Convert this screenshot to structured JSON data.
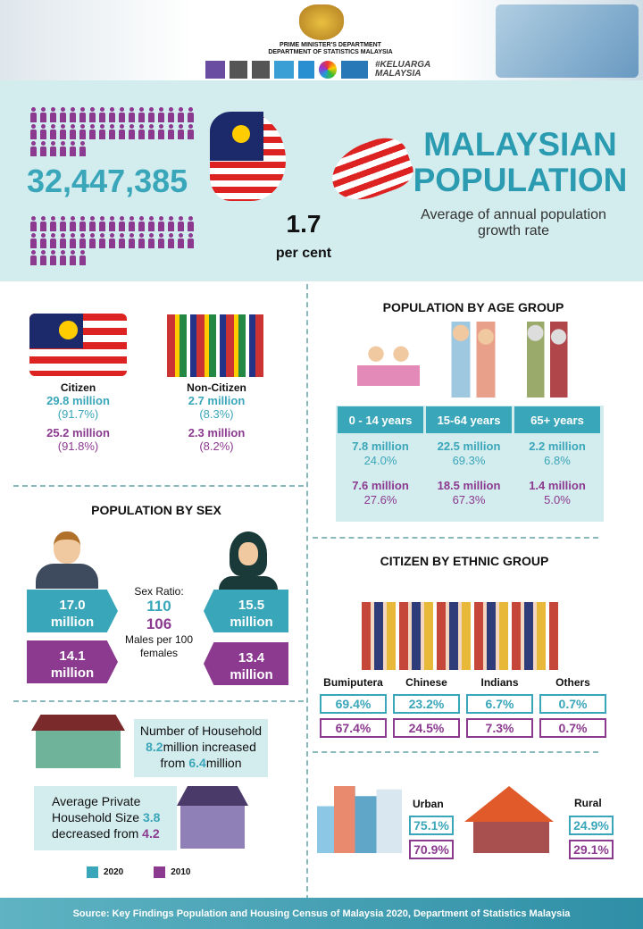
{
  "header": {
    "line1": "PRIME MINISTER'S DEPARTMENT",
    "line2": "DEPARTMENT OF STATISTICS MALAYSIA",
    "hashtag": "#KELUARGA MALAYSIA"
  },
  "hero": {
    "population": "32,447,385",
    "growth_value": "1.7",
    "growth_unit": "per cent",
    "title_line1": "MALAYSIAN",
    "title_line2": "POPULATION",
    "subtitle": "Average of annual population growth rate"
  },
  "citizenship": {
    "citizen": {
      "label": "Citizen",
      "v2020": "29.8 million",
      "p2020": "(91.7%)",
      "v2010": "25.2 million",
      "p2010": "(91.8%)"
    },
    "non_citizen": {
      "label": "Non-Citizen",
      "v2020": "2.7 million",
      "p2020": "(8.3%)",
      "v2010": "2.3 million",
      "p2010": "(8.2%)"
    }
  },
  "age": {
    "title": "POPULATION BY AGE GROUP",
    "groups": [
      {
        "label": "0 - 14 years",
        "v2020": "7.8 million",
        "p2020": "24.0%",
        "v2010": "7.6 million",
        "p2010": "27.6%"
      },
      {
        "label": "15-64 years",
        "v2020": "22.5 million",
        "p2020": "69.3%",
        "v2010": "18.5 million",
        "p2010": "67.3%"
      },
      {
        "label": "65+ years",
        "v2020": "2.2 million",
        "p2020": "6.8%",
        "v2010": "1.4 million",
        "p2010": "5.0%"
      }
    ]
  },
  "sex": {
    "title": "POPULATION BY SEX",
    "male2020": "17.0 million",
    "male2010": "14.1 million",
    "female2020": "15.5 million",
    "female2010": "13.4 million",
    "ratio_label": "Sex Ratio:",
    "ratio2020": "110",
    "ratio2010": "106",
    "ratio_note": "Males per 100 females"
  },
  "ethnic": {
    "title": "CITIZEN BY ETHNIC GROUP",
    "groups": [
      {
        "label": "Bumiputera",
        "p2020": "69.4%",
        "p2010": "67.4%"
      },
      {
        "label": "Chinese",
        "p2020": "23.2%",
        "p2010": "24.5%"
      },
      {
        "label": "Indians",
        "p2020": "6.7%",
        "p2010": "7.3%"
      },
      {
        "label": "Others",
        "p2020": "0.7%",
        "p2010": "0.7%"
      }
    ]
  },
  "household": {
    "line1": "Number of Household",
    "v2020": "8.2",
    "mid": "million increased",
    "from": "from",
    "v2010": "6.4",
    "unit": "million",
    "size_line1": "Average Private",
    "size_line2": "Household Size",
    "size2020": "3.8",
    "size_line3": "decreased from",
    "size2010": "4.2"
  },
  "strata": {
    "urban": {
      "label": "Urban",
      "p2020": "75.1%",
      "p2010": "70.9%"
    },
    "rural": {
      "label": "Rural",
      "p2020": "24.9%",
      "p2010": "29.1%"
    }
  },
  "legend": {
    "y2020": "2020",
    "y2010": "2010",
    "color2020": "#3aa6b9",
    "color2010": "#8b3a8f"
  },
  "footer": {
    "source": "Source: Key Findings Population and Housing Census of Malaysia 2020, Department of Statistics Malaysia"
  }
}
